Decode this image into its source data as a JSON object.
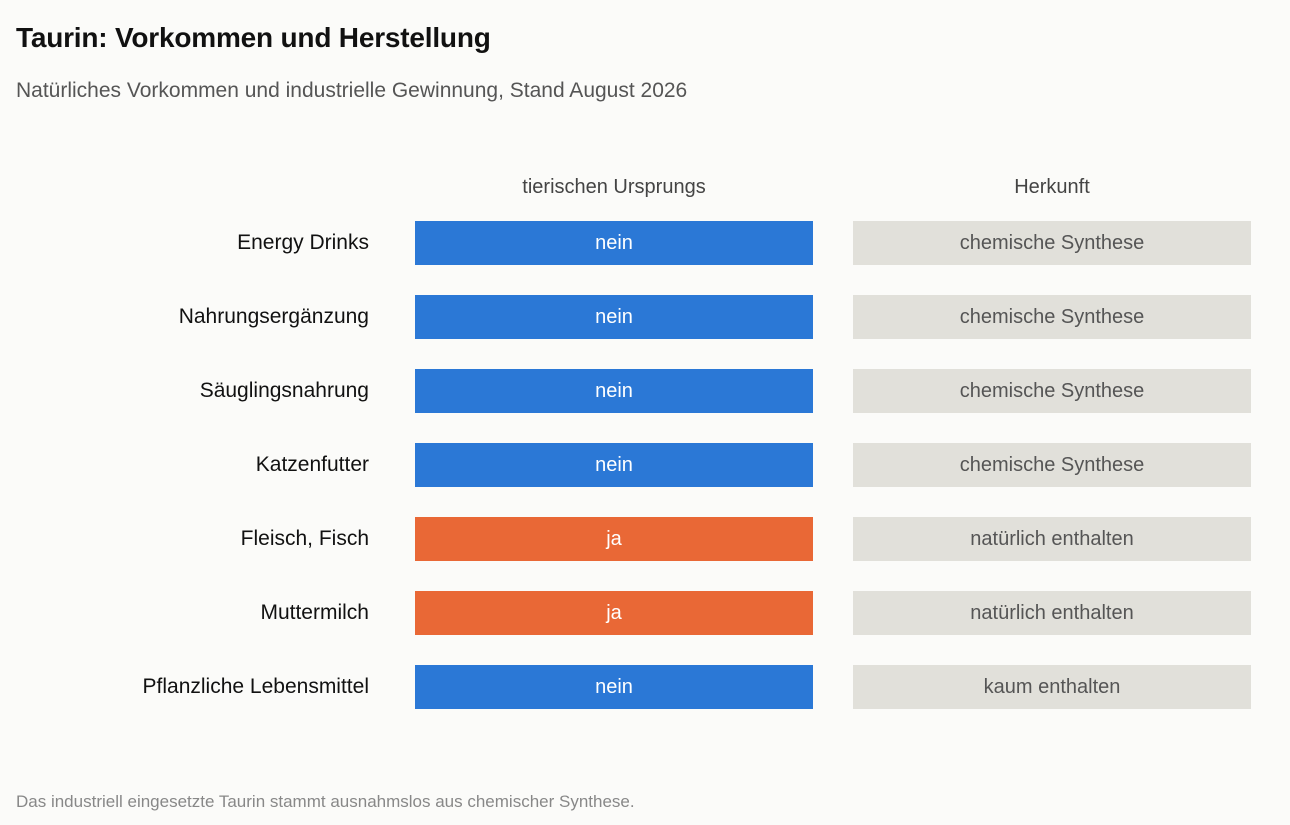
{
  "colors": {
    "nein": "#2b78d6",
    "ja": "#e96836",
    "neutral": "#e1e0da"
  },
  "chart_data": {
    "type": "table",
    "title": "Taurin: Vorkommen und Herstellung",
    "subtitle": "Natürliches Vorkommen und industrielle Gewinnung, Stand August 2026",
    "columns": [
      "tierischen Ursprungs",
      "Herkunft"
    ],
    "rows": [
      {
        "label": "Energy Drinks",
        "origin": "nein",
        "source": "chemische Synthese"
      },
      {
        "label": "Nahrungsergänzung",
        "origin": "nein",
        "source": "chemische Synthese"
      },
      {
        "label": "Säuglingsnahrung",
        "origin": "nein",
        "source": "chemische Synthese"
      },
      {
        "label": "Katzenfutter",
        "origin": "nein",
        "source": "chemische Synthese"
      },
      {
        "label": "Fleisch, Fisch",
        "origin": "ja",
        "source": "natürlich enthalten"
      },
      {
        "label": "Muttermilch",
        "origin": "ja",
        "source": "natürlich enthalten"
      },
      {
        "label": "Pflanzliche Lebensmittel",
        "origin": "nein",
        "source": "kaum enthalten"
      }
    ],
    "footnote": "Das industriell eingesetzte Taurin stammt ausnahmslos aus chemischer Synthese."
  }
}
